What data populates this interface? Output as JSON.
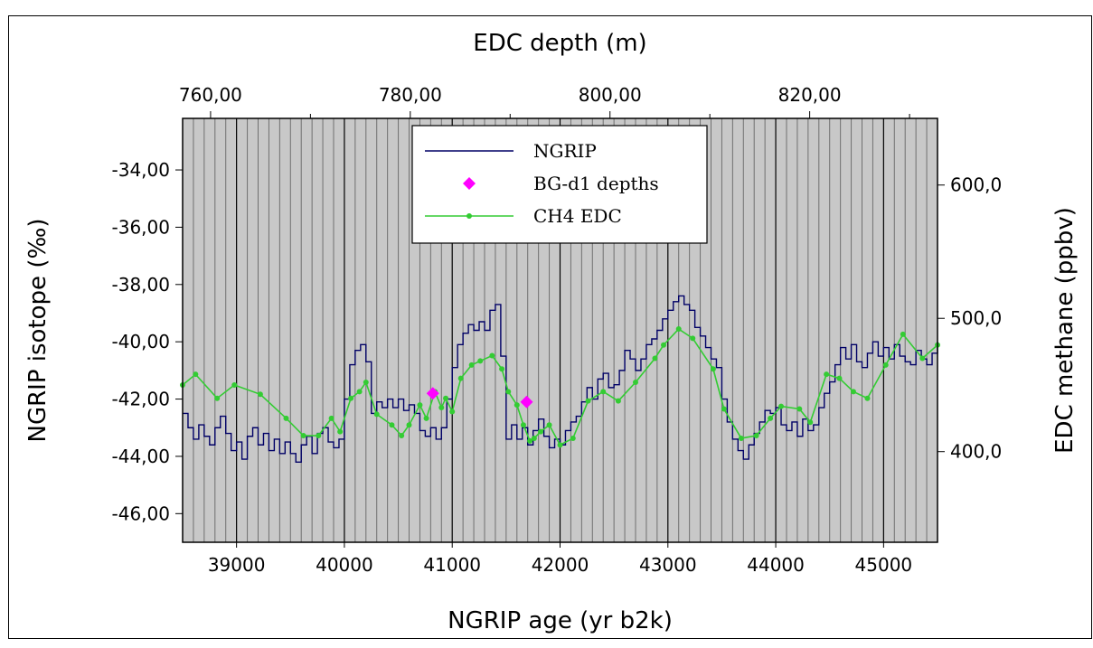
{
  "chart_data": {
    "type": "line",
    "title": "",
    "top_axis": {
      "label": "EDC depth (m)",
      "ticks": [
        {
          "value": 760,
          "label": "760,00"
        },
        {
          "value": 780,
          "label": "780,00"
        },
        {
          "value": 800,
          "label": "800,00"
        },
        {
          "value": 820,
          "label": "820,00"
        }
      ],
      "range": [
        757.2,
        832.8
      ]
    },
    "x_axis": {
      "label": "NGRIP age (yr b2k)",
      "range": [
        38500,
        45500
      ],
      "ticks": [
        {
          "value": 39000,
          "label": "39000"
        },
        {
          "value": 40000,
          "label": "40000"
        },
        {
          "value": 41000,
          "label": "41000"
        },
        {
          "value": 42000,
          "label": "42000"
        },
        {
          "value": 43000,
          "label": "43000"
        },
        {
          "value": 44000,
          "label": "44000"
        },
        {
          "value": 45000,
          "label": "45000"
        }
      ]
    },
    "y_left_axis": {
      "label": "NGRIP isotope (‰)",
      "range": [
        -47,
        -32.2
      ],
      "ticks": [
        {
          "value": -34,
          "label": "-34,00"
        },
        {
          "value": -36,
          "label": "-36,00"
        },
        {
          "value": -38,
          "label": "-38,00"
        },
        {
          "value": -40,
          "label": "-40,00"
        },
        {
          "value": -42,
          "label": "-42,00"
        },
        {
          "value": -44,
          "label": "-44,00"
        },
        {
          "value": -46,
          "label": "-46,00"
        }
      ]
    },
    "y_right_axis": {
      "label": "EDC methane (ppbv)",
      "range": [
        332,
        650
      ],
      "ticks": [
        {
          "value": 400,
          "label": "400,0"
        },
        {
          "value": 500,
          "label": "500,0"
        },
        {
          "value": 600,
          "label": "600,0"
        }
      ]
    },
    "grid": {
      "vertical_every_yr": 100,
      "major_every_yr": 1000
    },
    "legend_position": "top-center",
    "colors": {
      "plot_background": "#c8c8c8",
      "ngrip": "#000066",
      "bg_d1": "#ff00ff",
      "ch4": "#33cc33",
      "grid_minor": "#707070",
      "grid_major": "#000000"
    },
    "series": [
      {
        "name": "NGRIP",
        "axis": "left",
        "style": "step",
        "x": [
          38500,
          38550,
          38600,
          38650,
          38700,
          38750,
          38800,
          38850,
          38900,
          38950,
          39000,
          39050,
          39100,
          39150,
          39200,
          39250,
          39300,
          39350,
          39400,
          39450,
          39500,
          39550,
          39600,
          39650,
          39700,
          39750,
          39800,
          39850,
          39900,
          39950,
          40000,
          40050,
          40100,
          40150,
          40200,
          40250,
          40300,
          40350,
          40400,
          40450,
          40500,
          40550,
          40600,
          40650,
          40700,
          40750,
          40800,
          40850,
          40900,
          40950,
          41000,
          41050,
          41100,
          41150,
          41200,
          41250,
          41300,
          41350,
          41400,
          41450,
          41500,
          41550,
          41600,
          41650,
          41700,
          41750,
          41800,
          41850,
          41900,
          41950,
          42000,
          42050,
          42100,
          42150,
          42200,
          42250,
          42300,
          42350,
          42400,
          42450,
          42500,
          42550,
          42600,
          42650,
          42700,
          42750,
          42800,
          42850,
          42900,
          42950,
          43000,
          43050,
          43100,
          43150,
          43200,
          43250,
          43300,
          43350,
          43400,
          43450,
          43500,
          43550,
          43600,
          43650,
          43700,
          43750,
          43800,
          43850,
          43900,
          43950,
          44000,
          44050,
          44100,
          44150,
          44200,
          44250,
          44300,
          44350,
          44400,
          44450,
          44500,
          44550,
          44600,
          44650,
          44700,
          44750,
          44800,
          44850,
          44900,
          44950,
          45000,
          45050,
          45100,
          45150,
          45200,
          45250,
          45300,
          45350,
          45400,
          45450,
          45500
        ],
        "y": [
          -42.5,
          -43.0,
          -43.4,
          -42.9,
          -43.3,
          -43.6,
          -43.0,
          -42.6,
          -43.2,
          -43.8,
          -43.5,
          -44.1,
          -43.3,
          -43.0,
          -43.6,
          -43.2,
          -43.8,
          -43.4,
          -43.9,
          -43.5,
          -43.9,
          -44.2,
          -43.6,
          -43.3,
          -43.9,
          -43.2,
          -43.0,
          -43.5,
          -43.7,
          -43.4,
          -42.0,
          -40.8,
          -40.3,
          -40.1,
          -40.7,
          -42.5,
          -42.1,
          -42.3,
          -42.0,
          -42.3,
          -42.0,
          -42.4,
          -42.2,
          -42.5,
          -43.1,
          -43.3,
          -43.0,
          -43.4,
          -43.0,
          -42.0,
          -40.9,
          -40.1,
          -39.7,
          -39.4,
          -39.6,
          -39.3,
          -39.6,
          -38.9,
          -38.7,
          -40.5,
          -43.4,
          -42.9,
          -43.4,
          -43.0,
          -43.6,
          -43.1,
          -42.7,
          -43.3,
          -43.7,
          -43.4,
          -43.6,
          -43.1,
          -42.8,
          -42.6,
          -42.1,
          -41.6,
          -42.0,
          -41.3,
          -41.1,
          -41.6,
          -41.5,
          -41.0,
          -40.3,
          -40.6,
          -41.0,
          -40.6,
          -40.1,
          -39.9,
          -39.6,
          -39.2,
          -38.9,
          -38.6,
          -38.4,
          -38.7,
          -38.9,
          -39.5,
          -39.8,
          -40.2,
          -40.6,
          -40.9,
          -42.0,
          -42.8,
          -43.4,
          -43.8,
          -44.1,
          -43.6,
          -43.2,
          -42.8,
          -42.4,
          -42.5,
          -42.3,
          -42.9,
          -43.1,
          -42.8,
          -43.3,
          -42.7,
          -43.1,
          -42.9,
          -42.3,
          -41.8,
          -41.4,
          -40.8,
          -40.2,
          -40.6,
          -40.1,
          -40.7,
          -40.9,
          -40.4,
          -40.0,
          -40.5,
          -40.2,
          -40.6,
          -40.1,
          -40.5,
          -40.7,
          -40.8,
          -40.3,
          -40.6,
          -40.8,
          -40.4,
          -40.0
        ]
      },
      {
        "name": "BG-d1 depths",
        "axis": "left",
        "style": "markers",
        "x": [
          40820,
          41690
        ],
        "y": [
          -41.8,
          -42.1
        ]
      },
      {
        "name": "CH4 EDC",
        "axis": "right",
        "style": "line-markers",
        "x": [
          38500,
          38620,
          38820,
          38980,
          39220,
          39460,
          39620,
          39760,
          39880,
          39960,
          40060,
          40140,
          40200,
          40300,
          40440,
          40530,
          40600,
          40700,
          40760,
          40840,
          40900,
          40940,
          41000,
          41080,
          41180,
          41260,
          41370,
          41460,
          41520,
          41600,
          41660,
          41720,
          41760,
          41820,
          41900,
          42000,
          42120,
          42260,
          42400,
          42540,
          42700,
          42880,
          42960,
          43100,
          43230,
          43420,
          43520,
          43680,
          43820,
          43950,
          44050,
          44220,
          44320,
          44470,
          44590,
          44720,
          44850,
          45020,
          45180,
          45360,
          45500
        ],
        "y": [
          450,
          458,
          440,
          450,
          443,
          425,
          412,
          412,
          425,
          415,
          440,
          445,
          452,
          428,
          420,
          412,
          420,
          435,
          425,
          445,
          433,
          440,
          430,
          455,
          465,
          468,
          472,
          462,
          445,
          435,
          420,
          408,
          410,
          415,
          420,
          405,
          410,
          438,
          445,
          438,
          452,
          470,
          480,
          492,
          485,
          462,
          432,
          410,
          412,
          425,
          434,
          432,
          422,
          458,
          455,
          445,
          440,
          465,
          488,
          470,
          480
        ]
      }
    ]
  }
}
